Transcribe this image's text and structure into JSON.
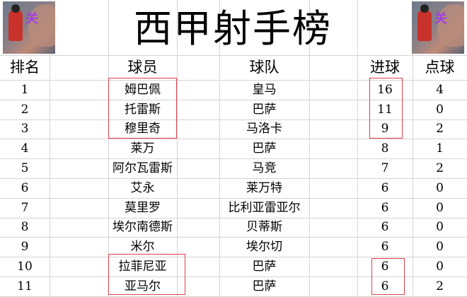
{
  "title": "西甲射手榜",
  "images": {
    "left": "anime-basketball-player-image",
    "right": "anime-basketball-player-image"
  },
  "headers": {
    "rank": "排名",
    "player": "球员",
    "team": "球队",
    "goals": "进球",
    "penalties": "点球"
  },
  "rows": [
    {
      "rank": "1",
      "player": "姆巴佩",
      "team": "皇马",
      "goals": "16",
      "penalties": "4"
    },
    {
      "rank": "2",
      "player": "托雷斯",
      "team": "巴萨",
      "goals": "11",
      "penalties": "0"
    },
    {
      "rank": "3",
      "player": "穆里奇",
      "team": "马洛卡",
      "goals": "9",
      "penalties": "2"
    },
    {
      "rank": "4",
      "player": "莱万",
      "team": "巴萨",
      "goals": "8",
      "penalties": "1"
    },
    {
      "rank": "5",
      "player": "阿尔瓦雷斯",
      "team": "马竞",
      "goals": "7",
      "penalties": "2"
    },
    {
      "rank": "6",
      "player": "艾永",
      "team": "莱万特",
      "goals": "6",
      "penalties": "0"
    },
    {
      "rank": "7",
      "player": "莫里罗",
      "team": "比利亚雷亚尔",
      "goals": "6",
      "penalties": "0"
    },
    {
      "rank": "8",
      "player": "埃尔南德斯",
      "team": "贝蒂斯",
      "goals": "6",
      "penalties": "0"
    },
    {
      "rank": "9",
      "player": "米尔",
      "team": "埃尔切",
      "goals": "6",
      "penalties": "0"
    },
    {
      "rank": "10",
      "player": "拉菲尼亚",
      "team": "巴萨",
      "goals": "6",
      "penalties": "0"
    },
    {
      "rank": "11",
      "player": "亚马尔",
      "team": "巴萨",
      "goals": "6",
      "penalties": "2"
    }
  ],
  "highlight_color": "#e0404a"
}
